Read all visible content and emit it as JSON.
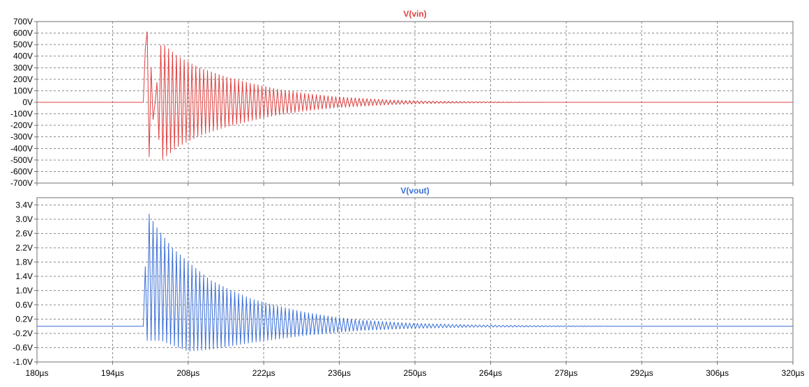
{
  "chart_data": [
    {
      "type": "line",
      "title": "V(vin)",
      "color": "#e04040",
      "grid": true,
      "xlim": [
        180,
        320
      ],
      "x_unit": "µs",
      "xticks": [
        180,
        194,
        208,
        222,
        236,
        250,
        264,
        278,
        292,
        306,
        320
      ],
      "xtick_labels": [
        "180µs",
        "194µs",
        "208µs",
        "222µs",
        "236µs",
        "250µs",
        "264µs",
        "278µs",
        "292µs",
        "306µs",
        "320µs"
      ],
      "ylim": [
        -700,
        700
      ],
      "yticks": [
        700,
        600,
        500,
        400,
        300,
        200,
        100,
        0,
        -100,
        -200,
        -300,
        -400,
        -500,
        -600,
        -700
      ],
      "ytick_labels": [
        "700V",
        "600V",
        "500V",
        "400V",
        "300V",
        "200V",
        "100V",
        "0V",
        "-100V",
        "-200V",
        "-300V",
        "-400V",
        "-500V",
        "-600V",
        "-700V"
      ],
      "series": [
        {
          "name": "V(vin)",
          "signal": {
            "kind": "damped_oscillation",
            "baseline": 0,
            "onset": 199.7,
            "end": 274.5,
            "period": 0.72,
            "peak_positive": 660,
            "peak_negative": -640,
            "decay_tau": 17,
            "points": [
              [
                180,
                0
              ],
              [
                199.7,
                0
              ],
              [
                200.0,
                660
              ],
              [
                200.4,
                -640
              ],
              [
                203,
                520
              ],
              [
                206,
                400
              ],
              [
                210,
                300
              ],
              [
                215,
                220
              ],
              [
                220,
                160
              ],
              [
                225,
                110
              ],
              [
                230,
                75
              ],
              [
                235,
                50
              ],
              [
                240,
                35
              ],
              [
                245,
                22
              ],
              [
                250,
                14
              ],
              [
                255,
                9
              ],
              [
                260,
                6
              ],
              [
                265,
                4
              ],
              [
                270,
                2
              ],
              [
                274.5,
                0
              ],
              [
                320,
                0
              ]
            ]
          }
        }
      ]
    },
    {
      "type": "line",
      "title": "V(vout)",
      "color": "#3a6fd8",
      "grid": true,
      "xlim": [
        180,
        320
      ],
      "x_unit": "µs",
      "xticks": [
        180,
        194,
        208,
        222,
        236,
        250,
        264,
        278,
        292,
        306,
        320
      ],
      "xtick_labels": [
        "180µs",
        "194µs",
        "208µs",
        "222µs",
        "236µs",
        "250µs",
        "264µs",
        "278µs",
        "292µs",
        "306µs",
        "320µs"
      ],
      "ylim": [
        -1.0,
        3.6
      ],
      "yticks": [
        3.4,
        3.0,
        2.6,
        2.2,
        1.8,
        1.4,
        1.0,
        0.6,
        0.2,
        -0.2,
        -0.6,
        -1.0
      ],
      "ytick_labels": [
        "3.4V",
        "3.0V",
        "2.6V",
        "2.2V",
        "1.8V",
        "1.4V",
        "1.0V",
        "0.6V",
        "0.2V",
        "-0.2V",
        "-0.6V",
        "-1.0V"
      ],
      "series": [
        {
          "name": "V(vout)",
          "signal": {
            "kind": "damped_oscillation",
            "baseline": 0,
            "onset": 199.7,
            "end": 290,
            "period": 0.72,
            "peak_positive": 3.25,
            "trough_min": -0.7,
            "decay_tau": 17,
            "points": [
              [
                180,
                0
              ],
              [
                199.7,
                0
              ],
              [
                200.4,
                3.25
              ],
              [
                202,
                2.8
              ],
              [
                205,
                2.2
              ],
              [
                208,
                1.8
              ],
              [
                212,
                1.3
              ],
              [
                216,
                1.0
              ],
              [
                220,
                0.75
              ],
              [
                225,
                0.55
              ],
              [
                230,
                0.38
              ],
              [
                235,
                0.26
              ],
              [
                240,
                0.17
              ],
              [
                250,
                0.08
              ],
              [
                260,
                0.04
              ],
              [
                270,
                0.02
              ],
              [
                280,
                0.01
              ],
              [
                290,
                0
              ],
              [
                320,
                0
              ]
            ],
            "trough_points": [
              [
                203,
                -0.4
              ],
              [
                208,
                -0.7
              ],
              [
                212,
                -0.65
              ],
              [
                220,
                -0.45
              ],
              [
                230,
                -0.25
              ],
              [
                240,
                -0.12
              ],
              [
                250,
                -0.06
              ],
              [
                260,
                -0.03
              ],
              [
                290,
                0
              ]
            ]
          }
        }
      ]
    }
  ]
}
